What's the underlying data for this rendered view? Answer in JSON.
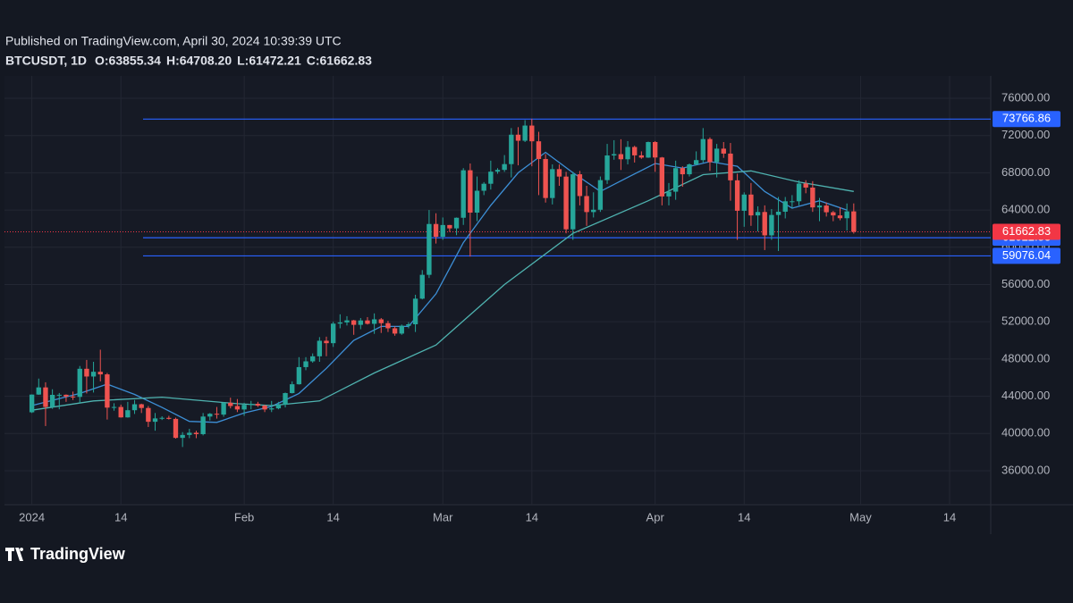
{
  "chart_data": {
    "type": "candlestick",
    "title": "Published on TradingView.com, April 30, 2024 10:39:39 UTC",
    "subtitle": "BTCUSDT, 1D",
    "ohlc_labels": [
      "O:63855.34",
      "H:64708.20",
      "L:61472.21",
      "C:61662.83"
    ],
    "brand": "TradingView",
    "up_color": "#26a69a",
    "down_color": "#ef5350",
    "x": [
      "2024-01-01",
      "2024-01-02",
      "2024-01-03",
      "2024-01-04",
      "2024-01-05",
      "2024-01-06",
      "2024-01-07",
      "2024-01-08",
      "2024-01-09",
      "2024-01-10",
      "2024-01-11",
      "2024-01-12",
      "2024-01-13",
      "2024-01-14",
      "2024-01-15",
      "2024-01-16",
      "2024-01-17",
      "2024-01-18",
      "2024-01-19",
      "2024-01-20",
      "2024-01-21",
      "2024-01-22",
      "2024-01-23",
      "2024-01-24",
      "2024-01-25",
      "2024-01-26",
      "2024-01-27",
      "2024-01-28",
      "2024-01-29",
      "2024-01-30",
      "2024-01-31",
      "2024-02-01",
      "2024-02-02",
      "2024-02-03",
      "2024-02-04",
      "2024-02-05",
      "2024-02-06",
      "2024-02-07",
      "2024-02-08",
      "2024-02-09",
      "2024-02-10",
      "2024-02-11",
      "2024-02-12",
      "2024-02-13",
      "2024-02-14",
      "2024-02-15",
      "2024-02-16",
      "2024-02-17",
      "2024-02-18",
      "2024-02-19",
      "2024-02-20",
      "2024-02-21",
      "2024-02-22",
      "2024-02-23",
      "2024-02-24",
      "2024-02-25",
      "2024-02-26",
      "2024-02-27",
      "2024-02-28",
      "2024-02-29",
      "2024-03-01",
      "2024-03-02",
      "2024-03-03",
      "2024-03-04",
      "2024-03-05",
      "2024-03-06",
      "2024-03-07",
      "2024-03-08",
      "2024-03-09",
      "2024-03-10",
      "2024-03-11",
      "2024-03-12",
      "2024-03-13",
      "2024-03-14",
      "2024-03-15",
      "2024-03-16",
      "2024-03-17",
      "2024-03-18",
      "2024-03-19",
      "2024-03-20",
      "2024-03-21",
      "2024-03-22",
      "2024-03-23",
      "2024-03-24",
      "2024-03-25",
      "2024-03-26",
      "2024-03-27",
      "2024-03-28",
      "2024-03-29",
      "2024-03-30",
      "2024-03-31",
      "2024-04-01",
      "2024-04-02",
      "2024-04-03",
      "2024-04-04",
      "2024-04-05",
      "2024-04-06",
      "2024-04-07",
      "2024-04-08",
      "2024-04-09",
      "2024-04-10",
      "2024-04-11",
      "2024-04-12",
      "2024-04-13",
      "2024-04-14",
      "2024-04-15",
      "2024-04-16",
      "2024-04-17",
      "2024-04-18",
      "2024-04-19",
      "2024-04-20",
      "2024-04-21",
      "2024-04-22",
      "2024-04-23",
      "2024-04-24",
      "2024-04-25",
      "2024-04-26",
      "2024-04-27",
      "2024-04-28",
      "2024-04-29",
      "2024-04-30"
    ],
    "open": [
      42280,
      44180,
      44950,
      42850,
      44150,
      44160,
      43970,
      43930,
      46950,
      46120,
      46630,
      46350,
      42780,
      42850,
      41730,
      42500,
      43140,
      42740,
      41260,
      41620,
      41680,
      41570,
      39530,
      39850,
      40080,
      39930,
      41820,
      42120,
      42030,
      43300,
      42950,
      42580,
      43080,
      43190,
      42990,
      42580,
      42700,
      43090,
      44340,
      45290,
      47130,
      47750,
      48290,
      49960,
      49700,
      51800,
      51930,
      52150,
      51670,
      52140,
      51780,
      52260,
      51850,
      51300,
      50730,
      51570,
      51730,
      54480,
      57040,
      62500,
      61130,
      62390,
      62030,
      63170,
      68270,
      63720,
      66070,
      66820,
      68120,
      68310,
      68930,
      72090,
      71440,
      73070,
      71380,
      69480,
      65290,
      68390,
      67590,
      61930,
      67840,
      65500,
      63780,
      64030,
      67210,
      69860,
      70000,
      69450,
      70770,
      69870,
      69630,
      71300,
      69640,
      65460,
      65970,
      68500,
      67840,
      68900,
      69360,
      71620,
      69140,
      70590,
      70060,
      67190,
      63920,
      65660,
      63420,
      63790,
      61280,
      63470,
      63820,
      64940,
      64940,
      66840,
      66410,
      64280,
      64480,
      63760,
      63420,
      63120,
      63855.34
    ],
    "high": [
      44200,
      45900,
      45500,
      44750,
      44350,
      44200,
      44500,
      47250,
      47900,
      47700,
      49000,
      46500,
      43250,
      43100,
      43400,
      43600,
      43200,
      42950,
      42200,
      41850,
      41900,
      41700,
      40150,
      40500,
      40300,
      42200,
      42200,
      42850,
      43350,
      43850,
      43700,
      43300,
      43500,
      43400,
      43100,
      43500,
      43400,
      44400,
      45600,
      48200,
      48200,
      48600,
      50350,
      50400,
      52000,
      52800,
      52600,
      52200,
      52400,
      52500,
      52900,
      52400,
      52100,
      51500,
      51700,
      51950,
      54900,
      57550,
      64000,
      63650,
      63200,
      62400,
      63200,
      68500,
      69000,
      67600,
      67000,
      69300,
      68500,
      69900,
      72800,
      72900,
      73650,
      73800,
      72400,
      70000,
      68900,
      68900,
      68100,
      68100,
      68200,
      66600,
      65900,
      67600,
      71100,
      71500,
      71600,
      71400,
      70900,
      70300,
      71350,
      71400,
      69700,
      66900,
      69300,
      68700,
      69000,
      70300,
      72800,
      71800,
      71100,
      71300,
      71200,
      67900,
      65900,
      66900,
      64400,
      64500,
      64100,
      65400,
      65400,
      65600,
      67200,
      67200,
      67100,
      65300,
      64800,
      63900,
      64300,
      64700,
      64708.2
    ],
    "low": [
      42200,
      44150,
      40800,
      42650,
      42600,
      43400,
      43600,
      43200,
      44300,
      44400,
      45600,
      41500,
      42450,
      41700,
      41700,
      42100,
      42200,
      40700,
      40300,
      41450,
      41500,
      39450,
      38550,
      39500,
      39500,
      39800,
      41400,
      41600,
      41800,
      42700,
      42300,
      41900,
      42600,
      42850,
      42300,
      42300,
      42600,
      42800,
      44300,
      45250,
      46800,
      47600,
      47700,
      48300,
      49300,
      51300,
      51600,
      50600,
      51200,
      51700,
      50700,
      50800,
      50900,
      50500,
      50600,
      51300,
      50900,
      54400,
      56700,
      60400,
      60800,
      61650,
      61300,
      62400,
      59000,
      62800,
      65600,
      66200,
      67900,
      68100,
      67500,
      68800,
      71300,
      68700,
      65600,
      64800,
      64600,
      66600,
      61500,
      60800,
      64500,
      62300,
      63200,
      63800,
      66800,
      69400,
      68300,
      68900,
      69100,
      69500,
      69600,
      68100,
      64500,
      64500,
      65100,
      66500,
      67600,
      68800,
      69100,
      68200,
      67500,
      69600,
      65000,
      60800,
      62200,
      62300,
      61700,
      59700,
      60800,
      59600,
      63100,
      64200,
      64500,
      65800,
      63800,
      62800,
      63300,
      62800,
      62900,
      61800,
      61472.21
    ],
    "close": [
      44180,
      44950,
      42850,
      44150,
      44160,
      43970,
      43930,
      46950,
      46120,
      46630,
      46350,
      42780,
      42850,
      41730,
      42500,
      43140,
      42740,
      41260,
      41620,
      41680,
      41570,
      39530,
      39850,
      40080,
      39930,
      41820,
      42120,
      42030,
      43300,
      42950,
      42580,
      43080,
      43190,
      42990,
      42580,
      42700,
      43090,
      44340,
      45290,
      47130,
      47750,
      48290,
      49960,
      49700,
      51800,
      51930,
      52150,
      51670,
      52140,
      51780,
      52260,
      51850,
      51300,
      50730,
      51570,
      51730,
      54480,
      57040,
      62500,
      61130,
      62390,
      62030,
      63170,
      68270,
      63720,
      66070,
      66820,
      68120,
      68310,
      68930,
      72090,
      71440,
      73070,
      71380,
      69480,
      65290,
      68390,
      67590,
      61930,
      67840,
      65500,
      63780,
      64030,
      67210,
      69860,
      70000,
      69450,
      70770,
      69870,
      69630,
      71300,
      69640,
      65460,
      65970,
      68500,
      67840,
      68900,
      69360,
      71620,
      69140,
      70590,
      70060,
      67190,
      63920,
      65660,
      63420,
      63790,
      61280,
      63470,
      63820,
      64940,
      64940,
      66840,
      66410,
      64280,
      64480,
      63760,
      63420,
      63120,
      63855.34,
      61662.83
    ],
    "lines": [
      {
        "color": "#3d8fd6",
        "x": [
          "2024-01-01",
          "2024-01-08",
          "2024-01-12",
          "2024-01-16",
          "2024-01-20",
          "2024-01-24",
          "2024-01-28",
          "2024-02-01",
          "2024-02-05",
          "2024-02-09",
          "2024-02-13",
          "2024-02-17",
          "2024-02-21",
          "2024-02-25",
          "2024-02-29",
          "2024-03-04",
          "2024-03-08",
          "2024-03-12",
          "2024-03-16",
          "2024-03-20",
          "2024-03-24",
          "2024-03-28",
          "2024-04-01",
          "2024-04-05",
          "2024-04-09",
          "2024-04-13",
          "2024-04-17",
          "2024-04-21",
          "2024-04-25",
          "2024-04-29"
        ],
        "values": [
          43000,
          44300,
          45300,
          44200,
          42800,
          41300,
          41200,
          42200,
          42900,
          44300,
          47000,
          50000,
          51500,
          51500,
          55000,
          60500,
          64500,
          68000,
          70200,
          68000,
          66000,
          67500,
          69000,
          68500,
          69200,
          68700,
          66000,
          64200,
          65000,
          64000
        ]
      },
      {
        "color": "#4fb3b0",
        "x": [
          "2024-01-01",
          "2024-01-10",
          "2024-01-20",
          "2024-01-31",
          "2024-02-05",
          "2024-02-12",
          "2024-02-20",
          "2024-02-29",
          "2024-03-10",
          "2024-03-20",
          "2024-03-31",
          "2024-04-08",
          "2024-04-15",
          "2024-04-22",
          "2024-04-30"
        ],
        "values": [
          42500,
          43500,
          43900,
          43200,
          43000,
          43500,
          46500,
          49500,
          56000,
          61500,
          65000,
          67800,
          68200,
          67000,
          66000
        ]
      }
    ],
    "levels": [
      {
        "value": 73766.86,
        "color": "#2962ff"
      },
      {
        "value": 61022.83,
        "color": "#2962ff"
      },
      {
        "value": 59076.04,
        "color": "#2962ff"
      }
    ],
    "last_price": {
      "value": 61662.83,
      "color": "#f23645"
    },
    "xlim": [
      "2023-12-28",
      "2024-05-20"
    ],
    "xticks": [
      {
        "value": "2024-01-01",
        "label": "2024"
      },
      {
        "value": "2024-01-14",
        "label": "14"
      },
      {
        "value": "2024-02-01",
        "label": "Feb"
      },
      {
        "value": "2024-02-14",
        "label": "14"
      },
      {
        "value": "2024-03-01",
        "label": "Mar"
      },
      {
        "value": "2024-03-14",
        "label": "14"
      },
      {
        "value": "2024-04-01",
        "label": "Apr"
      },
      {
        "value": "2024-04-14",
        "label": "14"
      },
      {
        "value": "2024-05-01",
        "label": "May"
      },
      {
        "value": "2024-05-14",
        "label": "14"
      }
    ],
    "ylim": [
      32350,
      78400
    ],
    "yticks": [
      {
        "value": 36000,
        "label": "36000.00"
      },
      {
        "value": 40000,
        "label": "40000.00"
      },
      {
        "value": 44000,
        "label": "44000.00"
      },
      {
        "value": 48000,
        "label": "48000.00"
      },
      {
        "value": 52000,
        "label": "52000.00"
      },
      {
        "value": 56000,
        "label": "56000.00"
      },
      {
        "value": 60000,
        "label": "60000.00"
      },
      {
        "value": 64000,
        "label": "64000.00"
      },
      {
        "value": 68000,
        "label": "68000.00"
      },
      {
        "value": 72000,
        "label": "72000.00"
      },
      {
        "value": 76000,
        "label": "76000.00"
      }
    ],
    "grid": true
  }
}
